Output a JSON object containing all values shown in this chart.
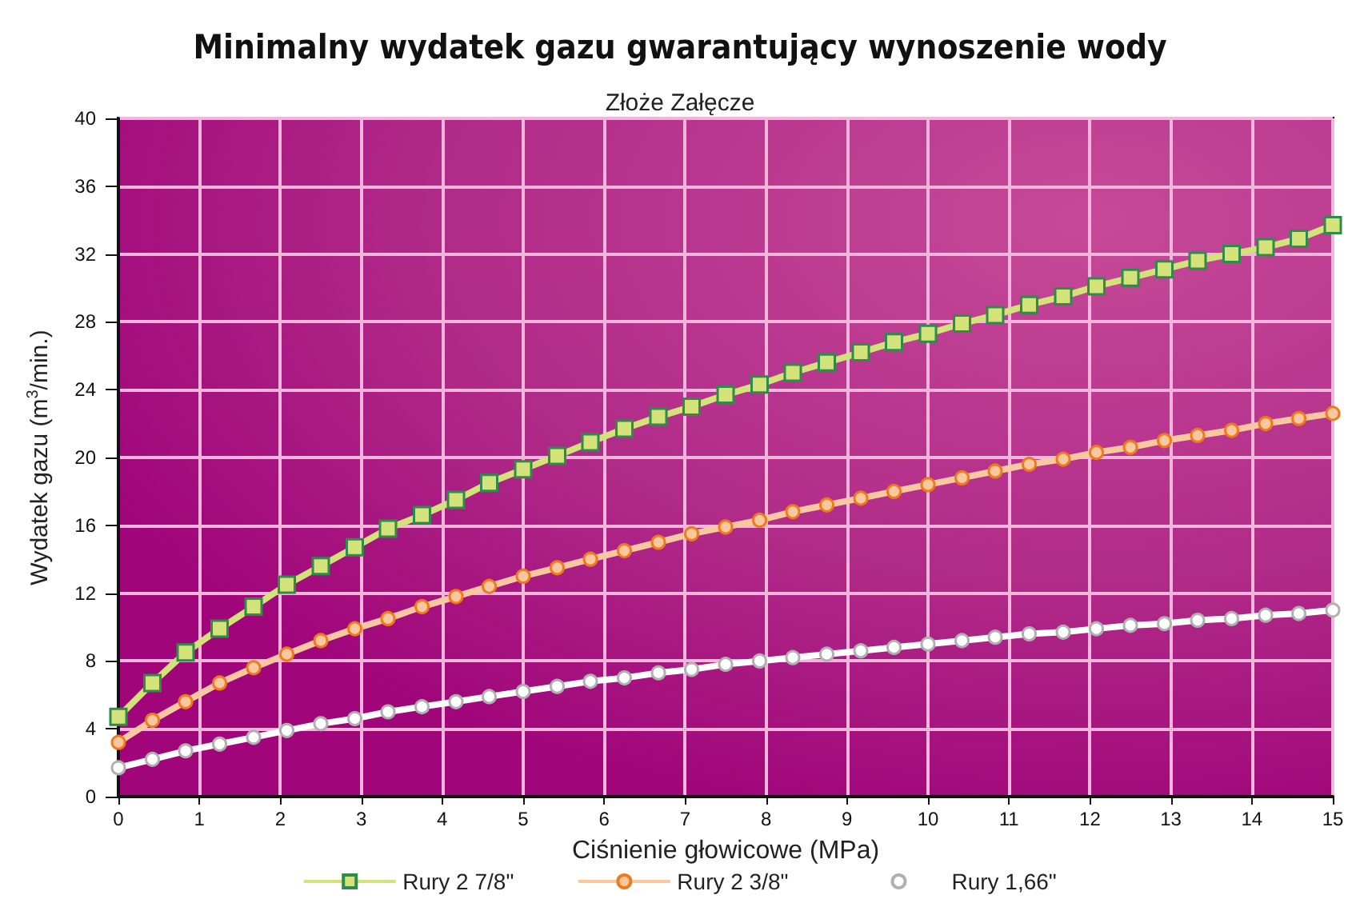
{
  "chart_data": {
    "type": "line",
    "title": "Minimalny wydatek gazu gwarantujący wynoszenie wody",
    "subtitle": "Złoże Załęcze",
    "xlabel": "Ciśnienie głowicowe (MPa)",
    "ylabel": "Wydatek gazu (m$^{3}$/min.)",
    "x": [
      0,
      0.42,
      0.83,
      1.25,
      1.67,
      2.08,
      2.5,
      2.92,
      3.33,
      3.75,
      4.17,
      4.58,
      5,
      5.42,
      5.83,
      6.25,
      6.67,
      7.08,
      7.5,
      7.92,
      8.33,
      8.75,
      9.17,
      9.58,
      10,
      10.42,
      10.83,
      11.25,
      11.67,
      12.08,
      12.5,
      12.92,
      13.33,
      13.75,
      14.17,
      14.58,
      15
    ],
    "series": [
      {
        "name": "Rury 2 7/8\"",
        "color": "#d4e27a",
        "marker": "square",
        "values": [
          4.7,
          6.7,
          8.5,
          9.9,
          11.2,
          12.5,
          13.6,
          14.7,
          15.8,
          16.6,
          17.5,
          18.5,
          19.3,
          20.1,
          20.9,
          21.7,
          22.4,
          23.0,
          23.7,
          24.3,
          25.0,
          25.6,
          26.2,
          26.8,
          27.3,
          27.9,
          28.4,
          29.0,
          29.5,
          30.1,
          30.6,
          31.1,
          31.6,
          32.0,
          32.4,
          32.9,
          33.7
        ]
      },
      {
        "name": "Rury 2 3/8\"",
        "color": "#f9c8a0",
        "marker": "circle",
        "values": [
          3.2,
          4.5,
          5.6,
          6.7,
          7.6,
          8.4,
          9.2,
          9.9,
          10.5,
          11.2,
          11.8,
          12.4,
          13.0,
          13.5,
          14.0,
          14.5,
          15.0,
          15.5,
          15.9,
          16.3,
          16.8,
          17.2,
          17.6,
          18.0,
          18.4,
          18.8,
          19.2,
          19.6,
          19.9,
          20.3,
          20.6,
          21.0,
          21.3,
          21.6,
          22.0,
          22.3,
          22.6
        ]
      },
      {
        "name": "Rury 1,66\"",
        "color": "#ffffff",
        "marker": "circle",
        "values": [
          1.7,
          2.2,
          2.7,
          3.1,
          3.5,
          3.9,
          4.3,
          4.6,
          5.0,
          5.3,
          5.6,
          5.9,
          6.2,
          6.5,
          6.8,
          7.0,
          7.3,
          7.5,
          7.8,
          8.0,
          8.2,
          8.4,
          8.6,
          8.8,
          9.0,
          9.2,
          9.4,
          9.6,
          9.7,
          9.9,
          10.1,
          10.2,
          10.4,
          10.5,
          10.7,
          10.8,
          11.0
        ]
      }
    ],
    "xlim": [
      0,
      15
    ],
    "xticks": [
      0,
      1,
      2,
      3,
      4,
      5,
      6,
      7,
      8,
      9,
      10,
      11,
      12,
      13,
      14,
      15
    ],
    "ylim": [
      0,
      40
    ],
    "yticks": [
      0,
      4,
      8,
      12,
      16,
      20,
      24,
      28,
      32,
      36,
      40
    ],
    "grid": true,
    "legend": "bottom",
    "line_style": "solid"
  }
}
